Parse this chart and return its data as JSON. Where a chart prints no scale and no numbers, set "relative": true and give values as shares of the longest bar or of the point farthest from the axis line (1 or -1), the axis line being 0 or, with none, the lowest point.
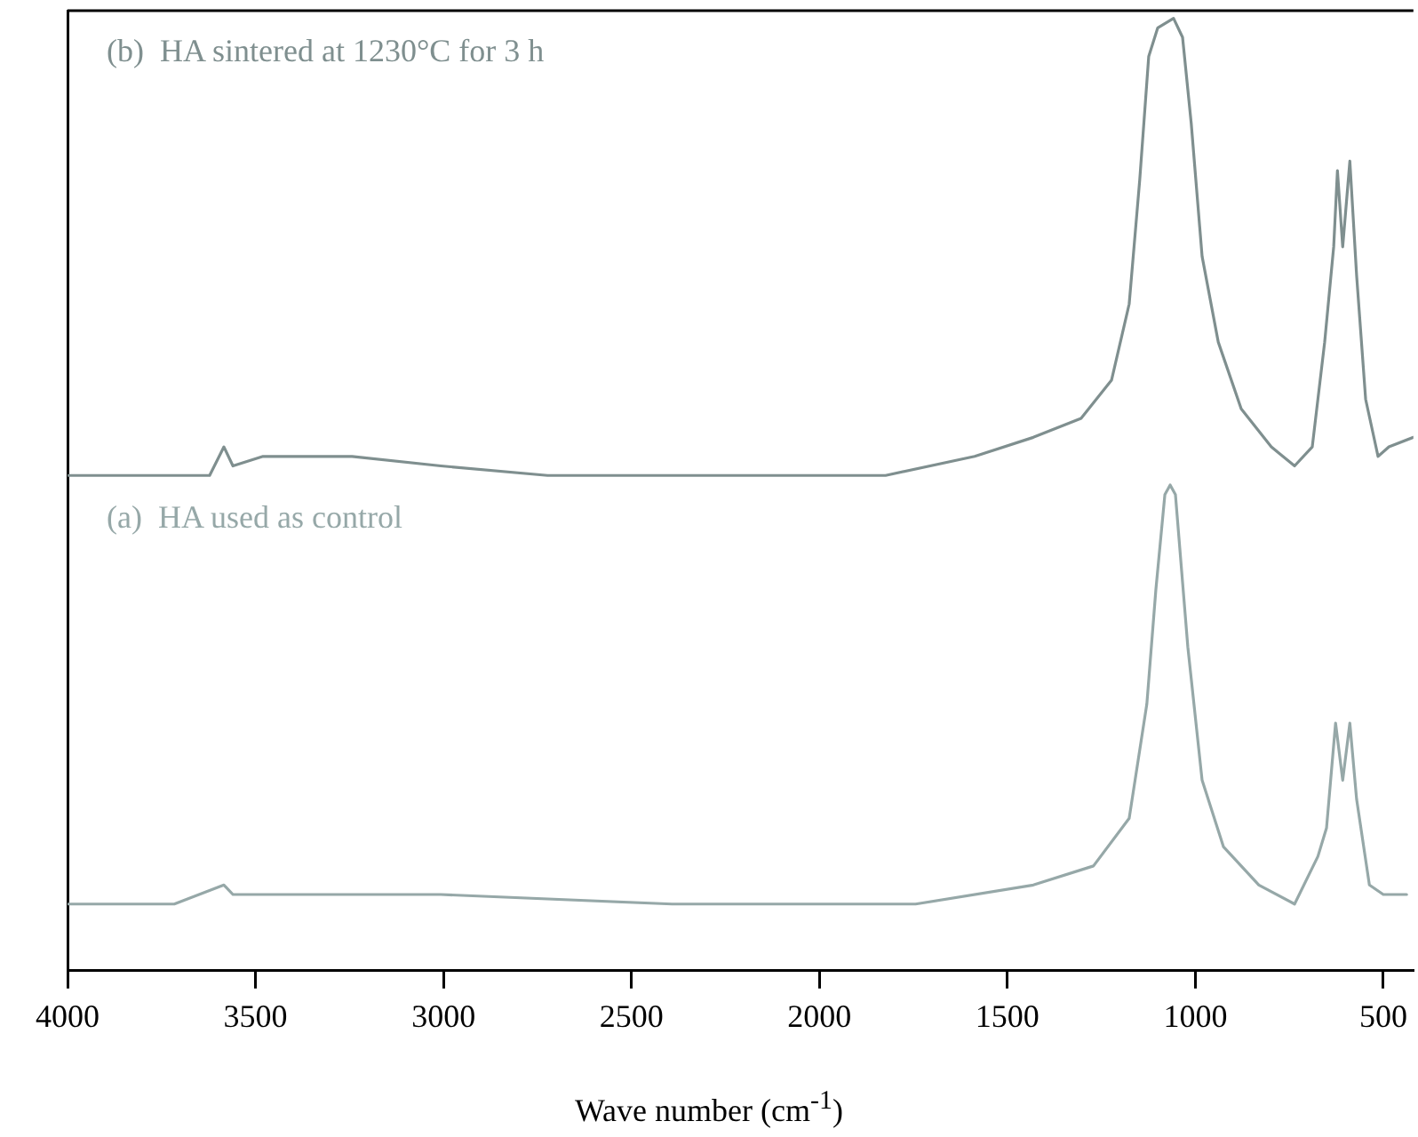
{
  "chart_data": {
    "type": "line",
    "relative": true,
    "xlabel": "Wave number (cm$^{-1}$)",
    "xlim": [
      4000,
      420
    ],
    "xticks": [
      4000,
      3500,
      3000,
      2500,
      2000,
      1500,
      1000,
      500
    ],
    "grid": false,
    "legend": false,
    "marker": "none",
    "line_style": "solid",
    "tick_labels": "x",
    "series": [
      {
        "name": "(b)  HA sintered at 1230°C for 3 h",
        "color": "#7f8f8f",
        "x": [
          4000,
          3905,
          3716,
          3622,
          3584,
          3560,
          3480,
          3243,
          3007,
          2723,
          2392,
          2061,
          1824,
          1587,
          1431,
          1304,
          1223,
          1176,
          1148,
          1124,
          1100,
          1058,
          1034,
          1011,
          982,
          939,
          878,
          798,
          736,
          689,
          656,
          632,
          622,
          608,
          589,
          571,
          547,
          514,
          485,
          420
        ],
        "values": [
          0.52,
          0.52,
          0.52,
          0.52,
          0.55,
          0.53,
          0.54,
          0.54,
          0.53,
          0.52,
          0.52,
          0.52,
          0.52,
          0.54,
          0.56,
          0.58,
          0.62,
          0.7,
          0.83,
          0.96,
          0.99,
          1.0,
          0.98,
          0.89,
          0.75,
          0.66,
          0.59,
          0.55,
          0.53,
          0.55,
          0.66,
          0.76,
          0.84,
          0.76,
          0.85,
          0.73,
          0.6,
          0.54,
          0.55,
          0.56
        ]
      },
      {
        "name": "(a)  HA used as control",
        "color": "#96a8a8",
        "x": [
          4000,
          3716,
          3584,
          3560,
          3480,
          3007,
          2392,
          2061,
          1744,
          1431,
          1271,
          1176,
          1129,
          1105,
          1081,
          1067,
          1053,
          1020,
          982,
          925,
          831,
          736,
          674,
          651,
          627,
          608,
          589,
          571,
          537,
          500,
          438
        ],
        "values": [
          0.07,
          0.07,
          0.09,
          0.08,
          0.08,
          0.08,
          0.07,
          0.07,
          0.07,
          0.09,
          0.11,
          0.16,
          0.28,
          0.4,
          0.5,
          0.51,
          0.5,
          0.34,
          0.2,
          0.13,
          0.09,
          0.07,
          0.12,
          0.15,
          0.26,
          0.2,
          0.26,
          0.18,
          0.09,
          0.08,
          0.08
        ]
      }
    ]
  }
}
